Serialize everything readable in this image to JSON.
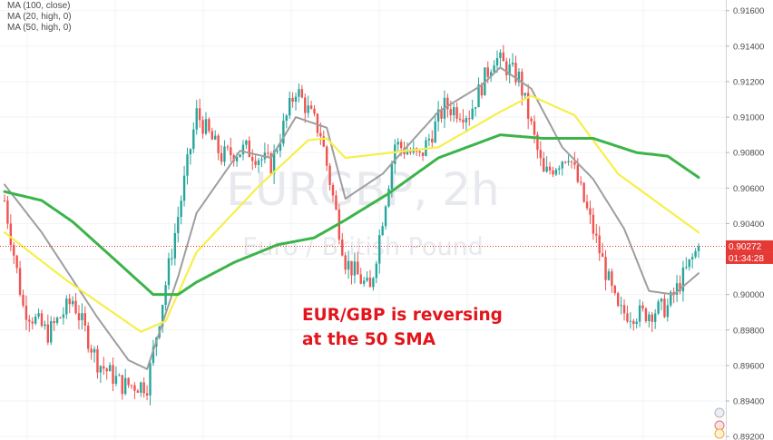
{
  "legend": {
    "ma100": "MA (100, close)",
    "ma20": "MA (20, high, 0)",
    "ma50": "MA (50, high, 0)"
  },
  "watermark": {
    "symbol": "EURGBP, 2h",
    "description": "Euro / British Pound"
  },
  "annotation": {
    "line1": "EUR/GBP is reversing",
    "line2": "at the 50 SMA"
  },
  "price_axis": {
    "ticks": [
      "0.91600",
      "0.91400",
      "0.91200",
      "0.91000",
      "0.90800",
      "0.90600",
      "0.90400",
      "0.90200",
      "0.90000",
      "0.89800",
      "0.89600",
      "0.89400",
      "0.89200"
    ],
    "current_price": "0.90272",
    "countdown": "01:34:28"
  },
  "colors": {
    "up": "#26a69a",
    "down": "#ef5350",
    "ma20": "#9e9e9e",
    "ma50": "#f6ef4a",
    "ma100": "#3bb449",
    "price_line": "#e53935",
    "annotation": "#e3141b"
  },
  "chart_data": {
    "type": "candlestick",
    "symbol": "EURGBP",
    "timeframe": "2h",
    "ylim": [
      0.8918,
      0.9166
    ],
    "last_close": 0.90272,
    "close_path": {
      "index": [
        0,
        6,
        14,
        22,
        30,
        38,
        46,
        54,
        62,
        70,
        78,
        86,
        94,
        102,
        110,
        118,
        126,
        134,
        142,
        150,
        158,
        166,
        174,
        182,
        190,
        198,
        206,
        214,
        224
      ],
      "close": [
        0.9053,
        0.8993,
        0.8978,
        0.8997,
        0.8962,
        0.8949,
        0.8949,
        0.9025,
        0.9102,
        0.9078,
        0.9082,
        0.9073,
        0.9116,
        0.9091,
        0.9019,
        0.9002,
        0.9085,
        0.9077,
        0.9106,
        0.9102,
        0.9134,
        0.9122,
        0.9067,
        0.908,
        0.9036,
        0.899,
        0.8989,
        0.8993,
        0.9027
      ]
    },
    "moving_averages": [
      {
        "name": "MA (20, high, 0)",
        "index": [
          0,
          12,
          30,
          40,
          46,
          56,
          62,
          76,
          86,
          94,
          104,
          110,
          122,
          140,
          154,
          160,
          170,
          180,
          190,
          200,
          208,
          216,
          224
        ],
        "value": [
          0.9062,
          0.9035,
          0.8987,
          0.8963,
          0.8958,
          0.901,
          0.9046,
          0.9081,
          0.9077,
          0.91,
          0.9094,
          0.9054,
          0.9068,
          0.9103,
          0.9118,
          0.9128,
          0.9116,
          0.9083,
          0.9065,
          0.9037,
          0.9002,
          0.9,
          0.9012
        ]
      },
      {
        "name": "MA (50, high, 0)",
        "index": [
          0,
          20,
          44,
          52,
          62,
          82,
          98,
          104,
          110,
          140,
          160,
          170,
          184,
          198,
          224
        ],
        "value": [
          0.9035,
          0.9008,
          0.8979,
          0.8985,
          0.9024,
          0.9061,
          0.9087,
          0.9088,
          0.9077,
          0.9083,
          0.9103,
          0.9112,
          0.9101,
          0.9068,
          0.9035
        ]
      },
      {
        "name": "MA (100, close)",
        "index": [
          0,
          12,
          22,
          36,
          48,
          56,
          62,
          74,
          88,
          100,
          110,
          124,
          140,
          160,
          174,
          190,
          204,
          214,
          224
        ],
        "value": [
          0.9058,
          0.9053,
          0.9041,
          0.9019,
          0.9,
          0.9,
          0.9007,
          0.9018,
          0.9028,
          0.9032,
          0.9042,
          0.9057,
          0.9077,
          0.909,
          0.9088,
          0.9088,
          0.908,
          0.9078,
          0.9066
        ]
      }
    ],
    "annotations": [
      "EUR/GBP is reversing",
      "at the 50 SMA"
    ]
  }
}
